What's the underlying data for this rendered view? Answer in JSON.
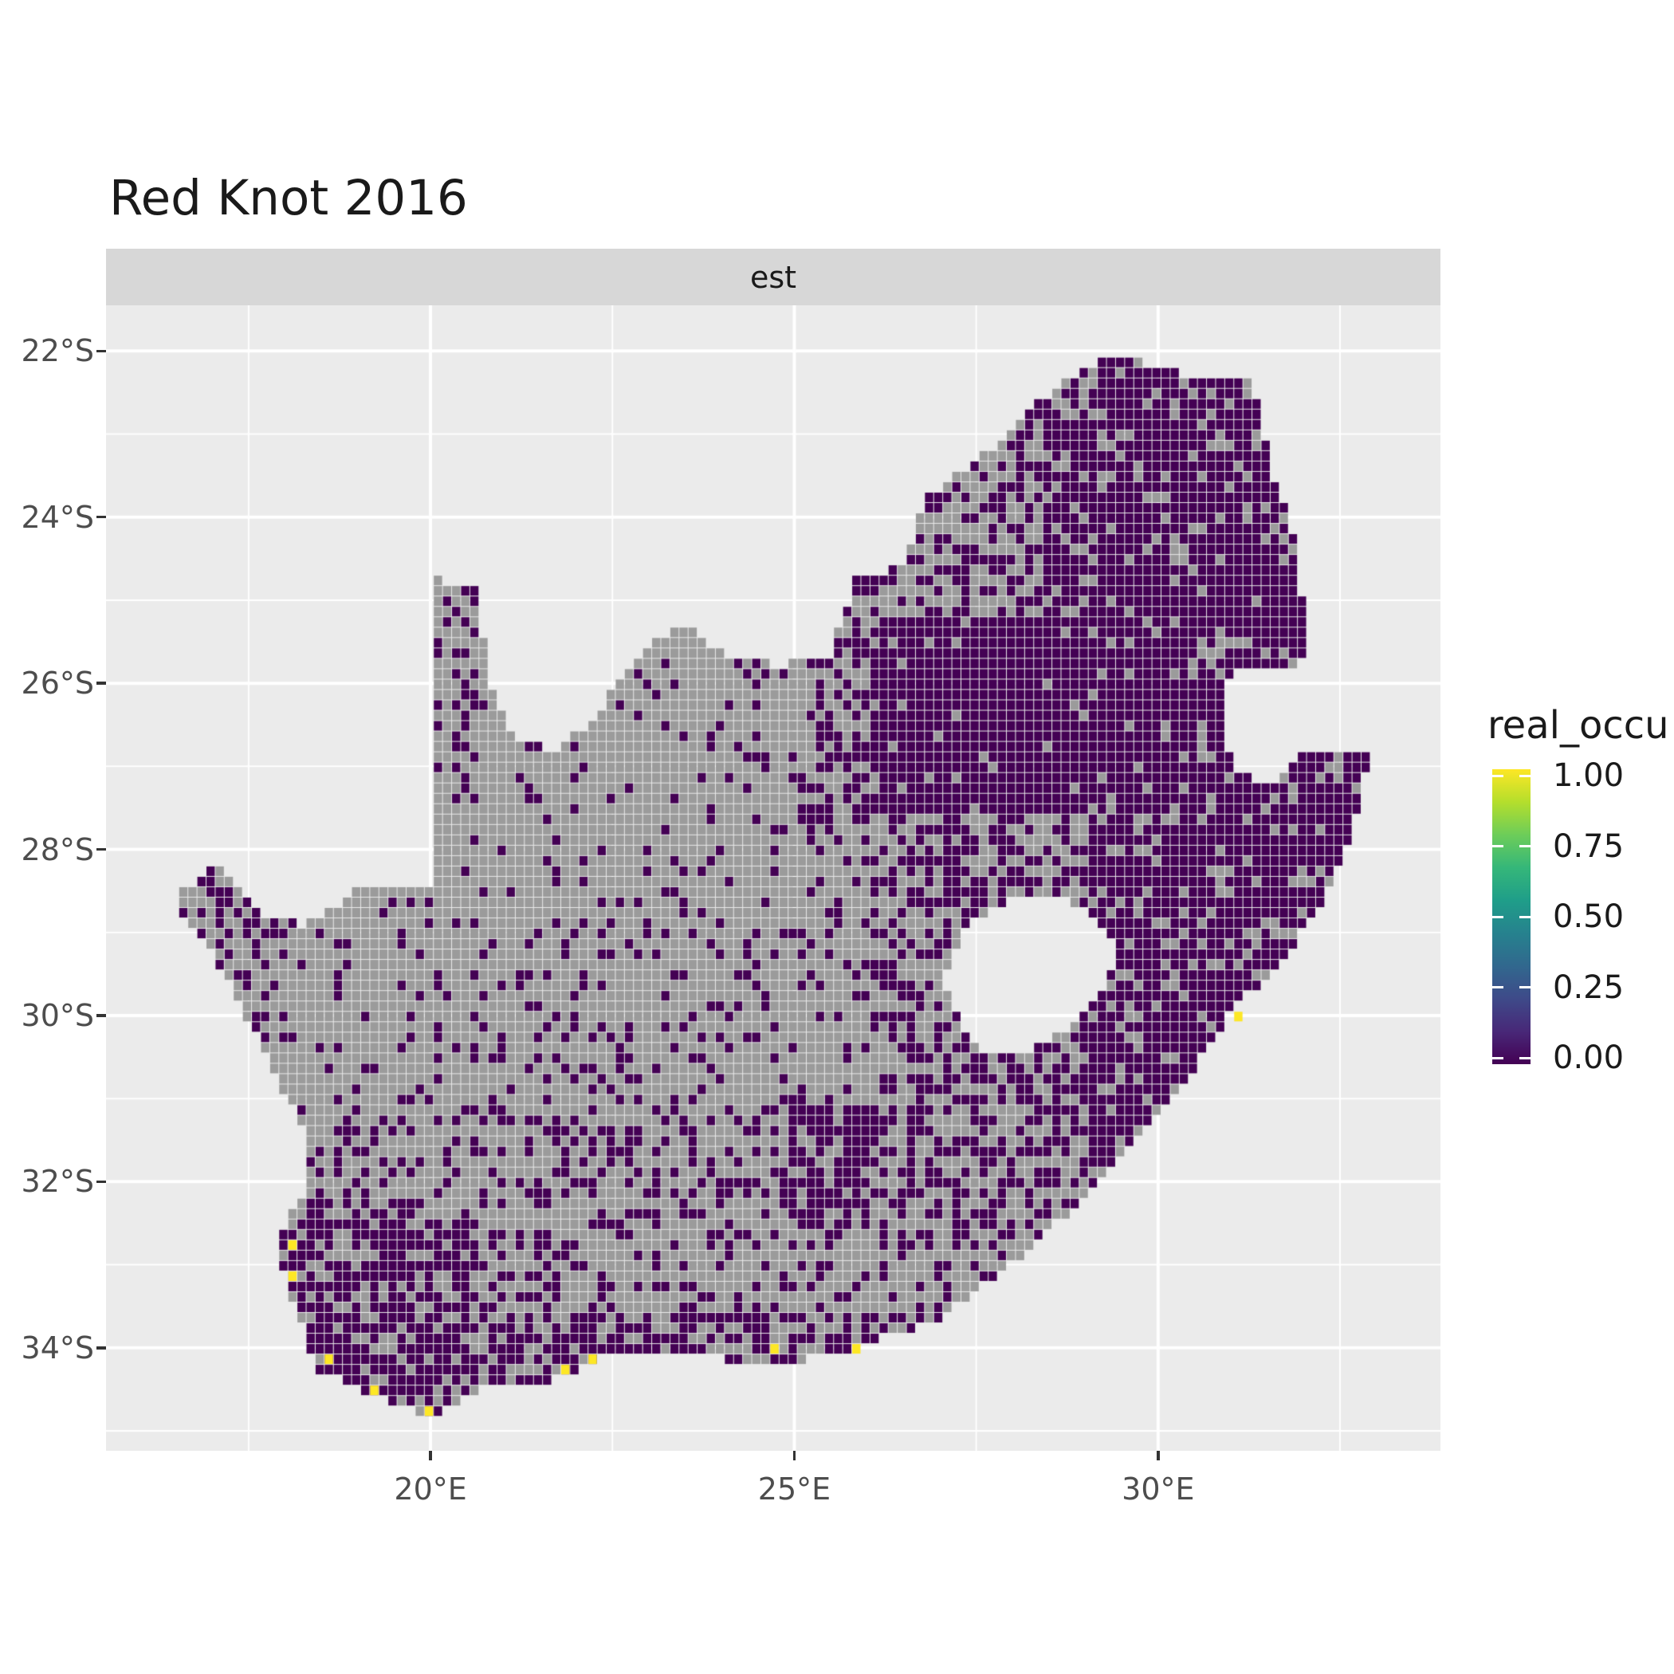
{
  "title": "Red Knot 2016",
  "facet_label": "est",
  "legend": {
    "title": "real_occu",
    "labels": [
      "1.00",
      "0.75",
      "0.50",
      "0.25",
      "0.00"
    ]
  },
  "colors": {
    "page_bg": "#FFFFFF",
    "panel_bg": "#EBEBEB",
    "strip_bg": "#D7D7D7",
    "strip_text": "#1A1A1A",
    "gridline": "#FFFFFF",
    "axis_text": "#4D4D4D",
    "tick_mark": "#333333",
    "title_text": "#1A1A1A",
    "na_cell": "#9B9B9B",
    "zero_cell": "#440154",
    "one_cell": "#FDE725"
  },
  "chart_data": {
    "type": "heatmap",
    "title": "Red Knot 2016",
    "facet": "est",
    "legend_title": "real_occu",
    "color_scale": {
      "name": "viridis",
      "limits": [
        0,
        1
      ],
      "breaks": [
        1.0,
        0.75,
        0.5,
        0.25,
        0.0
      ],
      "break_labels": [
        "1.00",
        "0.75",
        "0.50",
        "0.25",
        "0.00"
      ],
      "stops": [
        "#440154",
        "#482878",
        "#3E4A89",
        "#31688E",
        "#26828E",
        "#1F9E89",
        "#35B779",
        "#6DCD59",
        "#B4DE2C",
        "#FDE725"
      ]
    },
    "x_axis": {
      "tick_labels": [
        "20°E",
        "25°E",
        "30°E"
      ],
      "tick_values": [
        20,
        25,
        30
      ],
      "minor_tick_values": [
        17.5,
        22.5,
        27.5,
        32.5
      ],
      "range": [
        15.54,
        33.88
      ]
    },
    "y_axis": {
      "tick_labels": [
        "22°S",
        "24°S",
        "26°S",
        "28°S",
        "30°S",
        "32°S",
        "34°S"
      ],
      "tick_values": [
        -22,
        -24,
        -26,
        -28,
        -30,
        -32,
        -34
      ],
      "minor_tick_values": [
        -23,
        -25,
        -27,
        -29,
        -31,
        -33,
        -35
      ],
      "range": [
        -35.24,
        -21.45
      ]
    },
    "cell_size_deg": 0.125,
    "cell_colors": {
      "na": "#9B9B9B",
      "value_0": "#440154",
      "value_1": "#FDE725"
    },
    "default_density": 0.25,
    "boundary_lonlat": [
      [
        16.45,
        -28.6
      ],
      [
        17.05,
        -28.2
      ],
      [
        17.6,
        -28.75
      ],
      [
        18.25,
        -28.9
      ],
      [
        19.0,
        -28.5
      ],
      [
        19.98,
        -28.43
      ],
      [
        19.98,
        -24.75
      ],
      [
        20.6,
        -24.8
      ],
      [
        20.8,
        -25.9
      ],
      [
        21.1,
        -26.6
      ],
      [
        21.7,
        -26.85
      ],
      [
        22.3,
        -26.35
      ],
      [
        22.9,
        -25.6
      ],
      [
        23.5,
        -25.3
      ],
      [
        24.05,
        -25.65
      ],
      [
        24.8,
        -25.8
      ],
      [
        25.5,
        -25.65
      ],
      [
        25.85,
        -24.75
      ],
      [
        26.45,
        -24.6
      ],
      [
        26.85,
        -23.75
      ],
      [
        27.75,
        -23.15
      ],
      [
        28.3,
        -22.65
      ],
      [
        29.05,
        -22.15
      ],
      [
        29.7,
        -22.1
      ],
      [
        30.45,
        -22.3
      ],
      [
        31.3,
        -22.35
      ],
      [
        31.6,
        -23.6
      ],
      [
        31.9,
        -24.25
      ],
      [
        32.0,
        -25.1
      ],
      [
        31.97,
        -25.95
      ],
      [
        32.1,
        -26.35
      ],
      [
        32.05,
        -26.85
      ],
      [
        32.9,
        -26.87
      ],
      [
        32.65,
        -27.9
      ],
      [
        32.3,
        -28.55
      ],
      [
        31.7,
        -29.35
      ],
      [
        31.05,
        -29.9
      ],
      [
        30.4,
        -30.75
      ],
      [
        29.55,
        -31.65
      ],
      [
        28.85,
        -32.3
      ],
      [
        27.9,
        -33.05
      ],
      [
        26.9,
        -33.7
      ],
      [
        25.85,
        -33.98
      ],
      [
        25.6,
        -34.05
      ],
      [
        24.8,
        -34.2
      ],
      [
        23.8,
        -34.12
      ],
      [
        22.55,
        -34.05
      ],
      [
        22.15,
        -34.22
      ],
      [
        21.6,
        -34.42
      ],
      [
        20.75,
        -34.48
      ],
      [
        20.0,
        -34.82
      ],
      [
        19.3,
        -34.62
      ],
      [
        18.8,
        -34.4
      ],
      [
        18.45,
        -34.32
      ],
      [
        18.3,
        -33.9
      ],
      [
        18.0,
        -33.15
      ],
      [
        17.85,
        -32.75
      ],
      [
        18.35,
        -32.0
      ],
      [
        18.25,
        -31.4
      ],
      [
        17.7,
        -30.4
      ],
      [
        17.05,
        -29.3
      ],
      [
        16.7,
        -28.9
      ]
    ],
    "hole_polygons_lonlat": [
      [
        [
          27.05,
          -29.55
        ],
        [
          27.35,
          -28.95
        ],
        [
          27.9,
          -28.62
        ],
        [
          28.6,
          -28.58
        ],
        [
          29.2,
          -28.85
        ],
        [
          29.45,
          -29.25
        ],
        [
          29.25,
          -29.7
        ],
        [
          28.75,
          -30.15
        ],
        [
          28.1,
          -30.5
        ],
        [
          27.65,
          -30.45
        ],
        [
          27.25,
          -30.05
        ]
      ],
      [
        [
          30.85,
          -25.9
        ],
        [
          31.9,
          -25.82
        ],
        [
          32.12,
          -26.25
        ],
        [
          32.0,
          -26.82
        ],
        [
          31.55,
          -27.2
        ],
        [
          31.1,
          -27.1
        ],
        [
          30.88,
          -26.55
        ]
      ]
    ],
    "one_value_cells_lonlat": [
      [
        18.05,
        -32.79
      ],
      [
        18.05,
        -33.1
      ],
      [
        18.57,
        -34.1
      ],
      [
        19.18,
        -34.53
      ],
      [
        19.92,
        -34.76
      ],
      [
        21.87,
        -34.32
      ],
      [
        22.24,
        -34.17
      ],
      [
        24.78,
        -34.06
      ],
      [
        25.84,
        -33.97
      ],
      [
        31.15,
        -29.97
      ]
    ],
    "zero_cell_density_regions": [
      [
        16.4,
        20.0,
        -28.3,
        -32.3,
        0.13
      ],
      [
        20.0,
        25.2,
        -25.0,
        -29.0,
        0.1
      ],
      [
        19.9,
        20.85,
        -24.6,
        -27.2,
        0.32
      ],
      [
        20.0,
        26.5,
        -29.0,
        -31.3,
        0.22
      ],
      [
        20.5,
        26.5,
        -31.3,
        -33.6,
        0.3
      ],
      [
        18.0,
        20.5,
        -31.2,
        -32.4,
        0.3
      ],
      [
        16.4,
        20.5,
        -32.4,
        -35.0,
        0.72
      ],
      [
        20.5,
        27.2,
        -33.55,
        -35.0,
        0.55
      ],
      [
        24.9,
        26.35,
        -31.1,
        -32.55,
        0.8
      ],
      [
        16.8,
        18.7,
        -28.1,
        -29.1,
        0.45
      ],
      [
        22.3,
        28.6,
        -22.2,
        -25.3,
        0.45
      ],
      [
        25.2,
        26.2,
        -25.3,
        -27.7,
        0.5
      ],
      [
        26.2,
        30.4,
        -25.2,
        -27.6,
        0.95
      ],
      [
        28.45,
        32.2,
        -22.1,
        -25.5,
        0.82
      ],
      [
        30.3,
        33.0,
        -25.5,
        -27.0,
        0.85
      ],
      [
        29.0,
        33.0,
        -27.0,
        -31.8,
        0.78
      ],
      [
        26.0,
        29.0,
        -27.6,
        -30.2,
        0.45
      ],
      [
        26.3,
        29.0,
        -30.1,
        -31.9,
        0.5
      ],
      [
        25.8,
        30.0,
        -31.8,
        -33.6,
        0.35
      ]
    ]
  }
}
